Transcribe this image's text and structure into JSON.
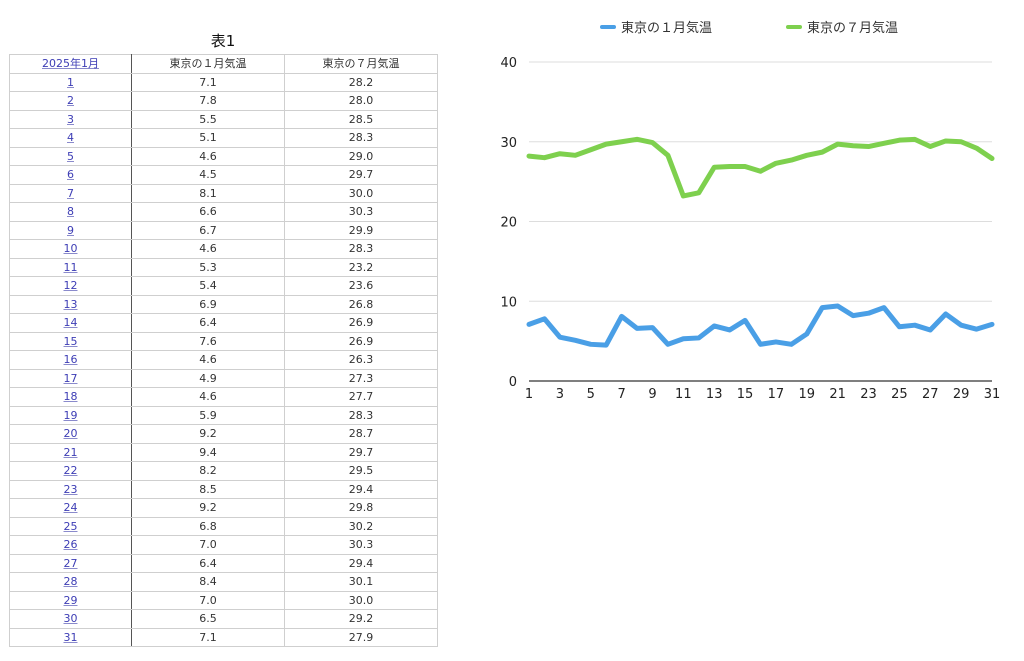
{
  "table": {
    "title": "表1",
    "headers": [
      "2025年1月",
      "東京の１月気温",
      "東京の７月気温"
    ],
    "rows": [
      [
        "1",
        "7.1",
        "28.2"
      ],
      [
        "2",
        "7.8",
        "28.0"
      ],
      [
        "3",
        "5.5",
        "28.5"
      ],
      [
        "4",
        "5.1",
        "28.3"
      ],
      [
        "5",
        "4.6",
        "29.0"
      ],
      [
        "6",
        "4.5",
        "29.7"
      ],
      [
        "7",
        "8.1",
        "30.0"
      ],
      [
        "8",
        "6.6",
        "30.3"
      ],
      [
        "9",
        "6.7",
        "29.9"
      ],
      [
        "10",
        "4.6",
        "28.3"
      ],
      [
        "11",
        "5.3",
        "23.2"
      ],
      [
        "12",
        "5.4",
        "23.6"
      ],
      [
        "13",
        "6.9",
        "26.8"
      ],
      [
        "14",
        "6.4",
        "26.9"
      ],
      [
        "15",
        "7.6",
        "26.9"
      ],
      [
        "16",
        "4.6",
        "26.3"
      ],
      [
        "17",
        "4.9",
        "27.3"
      ],
      [
        "18",
        "4.6",
        "27.7"
      ],
      [
        "19",
        "5.9",
        "28.3"
      ],
      [
        "20",
        "9.2",
        "28.7"
      ],
      [
        "21",
        "9.4",
        "29.7"
      ],
      [
        "22",
        "8.2",
        "29.5"
      ],
      [
        "23",
        "8.5",
        "29.4"
      ],
      [
        "24",
        "9.2",
        "29.8"
      ],
      [
        "25",
        "6.8",
        "30.2"
      ],
      [
        "26",
        "7.0",
        "30.3"
      ],
      [
        "27",
        "6.4",
        "29.4"
      ],
      [
        "28",
        "8.4",
        "30.1"
      ],
      [
        "29",
        "7.0",
        "30.0"
      ],
      [
        "30",
        "6.5",
        "29.2"
      ],
      [
        "31",
        "7.1",
        "27.9"
      ]
    ]
  },
  "chart_data": {
    "type": "line",
    "title": "",
    "xlabel": "",
    "ylabel": "",
    "x": [
      1,
      2,
      3,
      4,
      5,
      6,
      7,
      8,
      9,
      10,
      11,
      12,
      13,
      14,
      15,
      16,
      17,
      18,
      19,
      20,
      21,
      22,
      23,
      24,
      25,
      26,
      27,
      28,
      29,
      30,
      31
    ],
    "x_tick_labels": [
      "1",
      "3",
      "5",
      "7",
      "9",
      "11",
      "13",
      "15",
      "17",
      "19",
      "21",
      "23",
      "25",
      "27",
      "29",
      "31"
    ],
    "ylim": [
      0,
      40
    ],
    "y_ticks": [
      0,
      10,
      20,
      30,
      40
    ],
    "grid": true,
    "legend_position": "top",
    "series": [
      {
        "name": "東京の１月気温",
        "color": "#4a9fe6",
        "values": [
          7.1,
          7.8,
          5.5,
          5.1,
          4.6,
          4.5,
          8.1,
          6.6,
          6.7,
          4.6,
          5.3,
          5.4,
          6.9,
          6.4,
          7.6,
          4.6,
          4.9,
          4.6,
          5.9,
          9.2,
          9.4,
          8.2,
          8.5,
          9.2,
          6.8,
          7.0,
          6.4,
          8.4,
          7.0,
          6.5,
          7.1
        ]
      },
      {
        "name": "東京の７月気温",
        "color": "#7ed04e",
        "values": [
          28.2,
          28.0,
          28.5,
          28.3,
          29.0,
          29.7,
          30.0,
          30.3,
          29.9,
          28.3,
          23.2,
          23.6,
          26.8,
          26.9,
          26.9,
          26.3,
          27.3,
          27.7,
          28.3,
          28.7,
          29.7,
          29.5,
          29.4,
          29.8,
          30.2,
          30.3,
          29.4,
          30.1,
          30.0,
          29.2,
          27.9
        ]
      }
    ]
  }
}
